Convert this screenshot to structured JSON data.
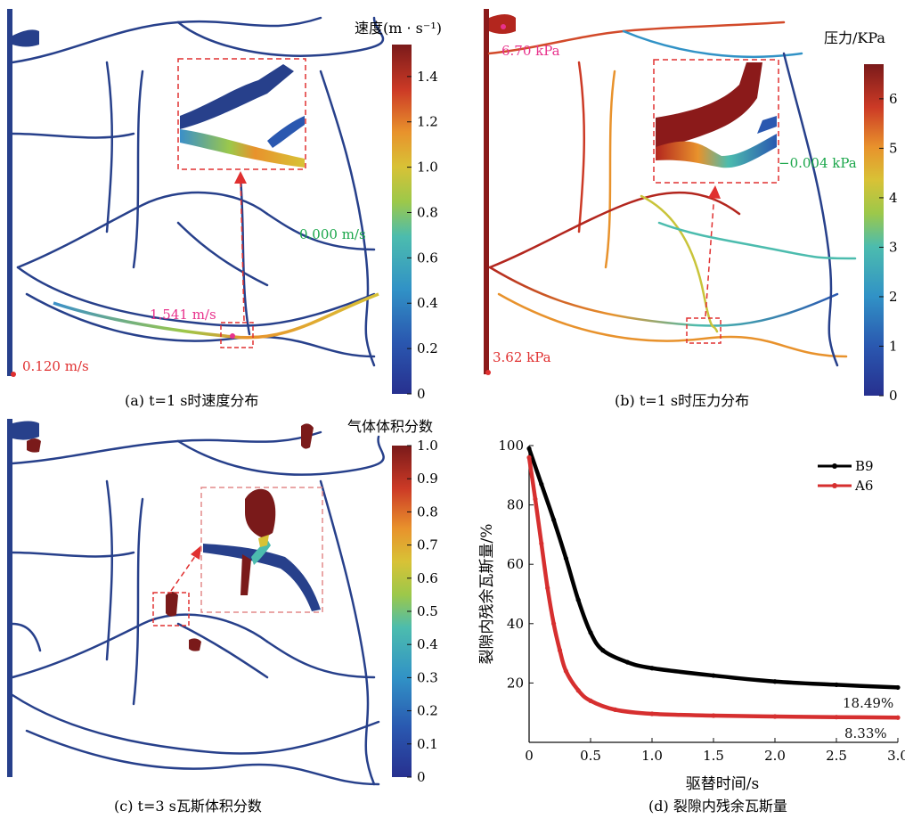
{
  "colors": {
    "pink": "#e8328c",
    "red": "#e03030",
    "green": "#1aa64a",
    "dashed_box": "#e03030",
    "network_blue": "#27408b",
    "b9": "#000000",
    "a6": "#d62f2f"
  },
  "panel_a": {
    "caption": "(a) t=1 s时速度分布",
    "colorbar": {
      "title": "速度(m · s⁻¹)",
      "ticks": [
        "0",
        "0.2",
        "0.4",
        "0.6",
        "0.8",
        "1.0",
        "1.2",
        "1.4"
      ],
      "max": 1.541
    },
    "annotations": {
      "max": "1.541 m/s",
      "zero": "0.000 m/s",
      "inlet": "0.120 m/s"
    }
  },
  "panel_b": {
    "caption": "(b) t=1 s时压力分布",
    "colorbar": {
      "title": "压力/KPa",
      "ticks": [
        "0",
        "1",
        "2",
        "3",
        "4",
        "5",
        "6"
      ],
      "max": 6.7
    },
    "annotations": {
      "top": "6.70 kPa",
      "right": "−0.004 kPa",
      "bottom": "3.62 kPa"
    }
  },
  "panel_c": {
    "caption": "(c) t=3 s瓦斯体积分数",
    "colorbar": {
      "title": "气体体积分数",
      "ticks": [
        "0",
        "0.1",
        "0.2",
        "0.3",
        "0.4",
        "0.5",
        "0.6",
        "0.7",
        "0.8",
        "0.9",
        "1.0"
      ],
      "max": 1.0
    }
  },
  "panel_d": {
    "caption": "(d) 裂隙内残余瓦斯量",
    "annotations": {
      "b9_final": "18.49%",
      "a6_final": "8.33%"
    }
  },
  "chart_data": {
    "type": "line",
    "title": "",
    "xlabel": "驱替时间/s",
    "ylabel": "裂隙内残余瓦斯量/%",
    "xlim": [
      0,
      3.0
    ],
    "ylim": [
      0,
      100
    ],
    "xticks": [
      "0",
      "0.5",
      "1.0",
      "1.5",
      "2.0",
      "2.5",
      "3.0"
    ],
    "yticks": [
      "20",
      "40",
      "60",
      "80",
      "100"
    ],
    "legend_position": "top-right",
    "grid": false,
    "series": [
      {
        "name": "B9",
        "x": [
          0,
          0.1,
          0.2,
          0.3,
          0.4,
          0.5,
          0.6,
          0.8,
          1.0,
          1.5,
          2.0,
          2.5,
          3.0
        ],
        "values": [
          99,
          87,
          75,
          62,
          48,
          37,
          31,
          27,
          25,
          22.5,
          20.5,
          19.4,
          18.49
        ]
      },
      {
        "name": "A6",
        "x": [
          0,
          0.05,
          0.1,
          0.15,
          0.2,
          0.25,
          0.3,
          0.4,
          0.5,
          0.7,
          1.0,
          1.5,
          2.0,
          2.5,
          3.0
        ],
        "values": [
          96,
          82,
          67,
          52,
          40,
          31,
          24,
          17.5,
          14,
          11,
          9.6,
          9,
          8.7,
          8.5,
          8.33
        ]
      }
    ]
  }
}
